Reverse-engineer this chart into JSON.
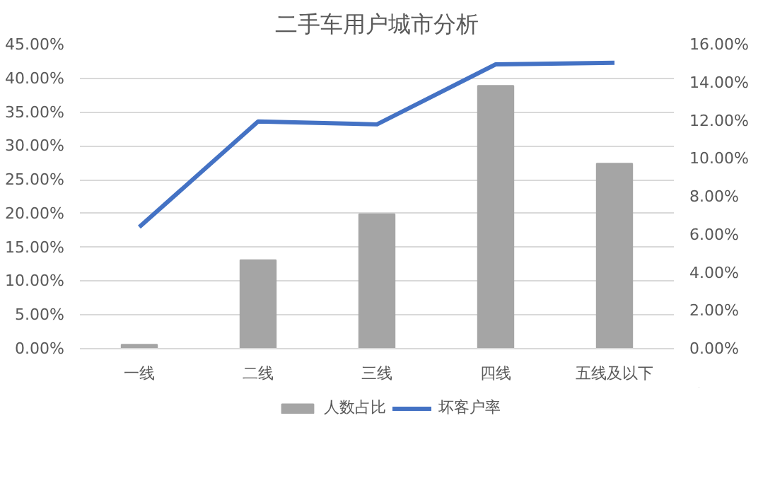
{
  "chart_data": {
    "type": "bar",
    "title": "二手车用户城市分析",
    "categories": [
      "一线",
      "二线",
      "三线",
      "四线",
      "五线及以下"
    ],
    "series": [
      {
        "name": "人数占比",
        "color": "#a5a5a5",
        "values": [
          0.6,
          13.1,
          19.9,
          38.9,
          27.4
        ]
      },
      {
        "name": "坏客户率",
        "type": "line",
        "axis": "y2",
        "color": "#4472c4",
        "values": [
          6.4,
          11.95,
          11.8,
          14.96,
          15.04
        ]
      }
    ],
    "ylim": [
      0,
      45
    ],
    "yticks": [
      {
        "value": 0,
        "label": "0.00%"
      },
      {
        "value": 5,
        "label": "5.00%"
      },
      {
        "value": 10,
        "label": "10.00%"
      },
      {
        "value": 15,
        "label": "15.00%"
      },
      {
        "value": 20,
        "label": "20.00%"
      },
      {
        "value": 25,
        "label": "25.00%"
      },
      {
        "value": 30,
        "label": "30.00%"
      },
      {
        "value": 35,
        "label": "35.00%"
      },
      {
        "value": 40,
        "label": "40.00%"
      },
      {
        "value": 45,
        "label": "45.00%"
      }
    ],
    "y2lim": [
      0,
      16
    ],
    "y2ticks": [
      {
        "value": 0,
        "label": "0.00%"
      },
      {
        "value": 2,
        "label": "2.00%"
      },
      {
        "value": 4,
        "label": "4.00%"
      },
      {
        "value": 6,
        "label": "6.00%"
      },
      {
        "value": 8,
        "label": "8.00%"
      },
      {
        "value": 10,
        "label": "10.00%"
      },
      {
        "value": 12,
        "label": "12.00%"
      },
      {
        "value": 14,
        "label": "14.00%"
      },
      {
        "value": 16,
        "label": "16.00%"
      }
    ],
    "grid": "y",
    "legend": "bottom",
    "marker": "none",
    "line_style": "solid"
  }
}
